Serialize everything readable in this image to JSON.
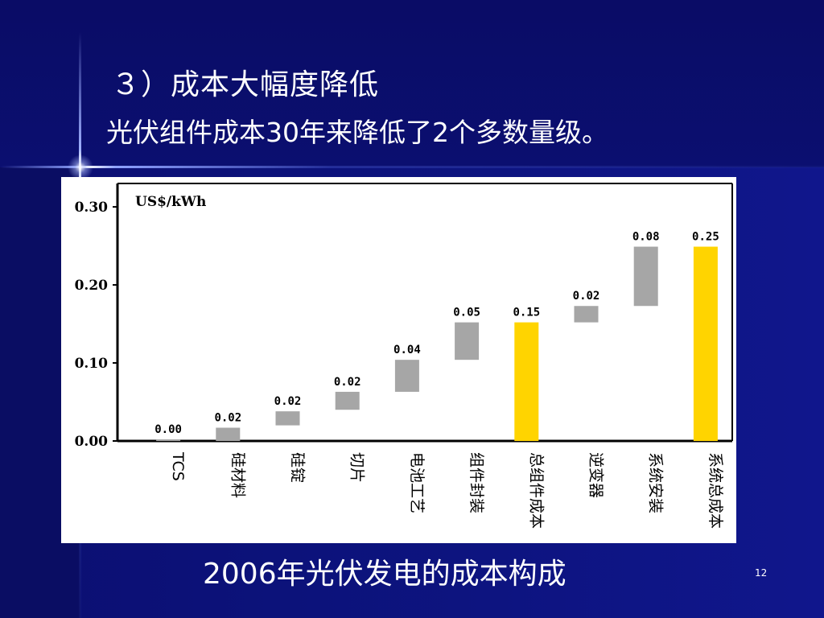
{
  "slide": {
    "title": "３）成本大幅度降低",
    "subtitle": "光伏组件成本30年来降低了2个多数量级。",
    "caption": "2006年光伏发电的成本构成",
    "page_number": "12"
  },
  "colors": {
    "background": "#0b0f6e",
    "gray_bar": "#a6a6a6",
    "yellow_bar": "#ffd400"
  },
  "chart_data": {
    "type": "bar",
    "subtype": "waterfall",
    "unit_label": "US$/kWh",
    "ylim": [
      0,
      0.33
    ],
    "yticks": [
      "0.30",
      "0.20",
      "0.10",
      "0.00"
    ],
    "ytick_values": [
      0.3,
      0.2,
      0.1,
      0.0
    ],
    "categories": [
      "TCS",
      "硅材料",
      "硅锭",
      "切片",
      "电池工艺",
      "组件封装",
      "总组件成本",
      "逆变器",
      "系统安装",
      "系统总成本"
    ],
    "bars": [
      {
        "category": "TCS",
        "bottom": 0.0,
        "top": 0.0,
        "label": "0.00",
        "kind": "increment"
      },
      {
        "category": "硅材料",
        "bottom": 0.0,
        "top": 0.017,
        "label": "0.02",
        "kind": "increment"
      },
      {
        "category": "硅锭",
        "bottom": 0.02,
        "top": 0.038,
        "label": "0.02",
        "kind": "increment"
      },
      {
        "category": "切片",
        "bottom": 0.04,
        "top": 0.063,
        "label": "0.02",
        "kind": "increment"
      },
      {
        "category": "电池工艺",
        "bottom": 0.063,
        "top": 0.104,
        "label": "0.04",
        "kind": "increment"
      },
      {
        "category": "组件封装",
        "bottom": 0.104,
        "top": 0.152,
        "label": "0.05",
        "kind": "increment"
      },
      {
        "category": "总组件成本",
        "bottom": 0.0,
        "top": 0.152,
        "label": "0.15",
        "kind": "total"
      },
      {
        "category": "逆变器",
        "bottom": 0.152,
        "top": 0.173,
        "label": "0.02",
        "kind": "increment"
      },
      {
        "category": "系统安装",
        "bottom": 0.173,
        "top": 0.249,
        "label": "0.08",
        "kind": "increment"
      },
      {
        "category": "系统总成本",
        "bottom": 0.0,
        "top": 0.249,
        "label": "0.25",
        "kind": "total"
      }
    ]
  }
}
